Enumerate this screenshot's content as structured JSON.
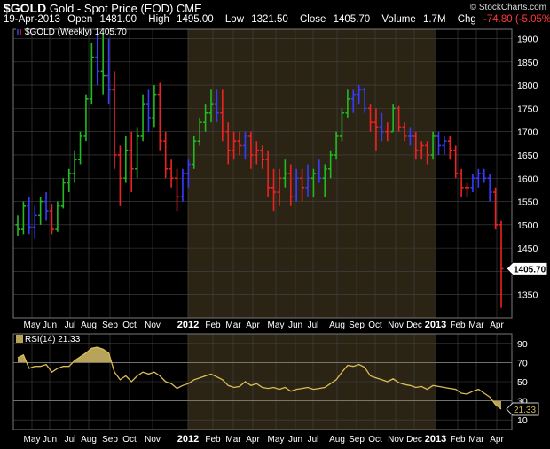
{
  "header": {
    "symbol": "$GOLD",
    "name": "Gold - Spot Price (EOD)",
    "exchange": "CME",
    "date": "19-Apr-2013",
    "open_label": "Open",
    "open": "1481.00",
    "high_label": "High",
    "high": "1495.00",
    "low_label": "Low",
    "low": "1321.50",
    "close_label": "Close",
    "close": "1405.70",
    "volume_label": "Volume",
    "volume": "1.7M",
    "chg_label": "Chg",
    "chg": "-74.80 (-5.05%)",
    "chg_arrow": "▼",
    "copyright": "© StockCharts.com"
  },
  "colors": {
    "up": "#22bb22",
    "down": "#ee2222",
    "neutral": "#3a3aff",
    "shade": "#2b2414",
    "rsi_line": "#d8bc55",
    "rsi_fill": "#b8a35a",
    "grid": "#444444"
  },
  "chart_data": [
    {
      "type": "bar",
      "legend": "$GOLD (Weekly) 1405.70",
      "last_value_label": "1405.70",
      "ylim": [
        1300,
        1920
      ],
      "y_ticks": [
        1350,
        1400,
        1450,
        1500,
        1550,
        1600,
        1650,
        1700,
        1750,
        1800,
        1850,
        1900
      ],
      "x_labels": [
        "May",
        "Jun",
        "Jul",
        "Aug",
        "Sep",
        "Oct",
        "Nov",
        "2012",
        "Feb",
        "Mar",
        "Apr",
        "May",
        "Jun",
        "Jul",
        "Aug",
        "Sep",
        "Oct",
        "Nov",
        "Dec",
        "2013",
        "Feb",
        "Mar",
        "Apr"
      ],
      "x_labels_bold": [
        "2012",
        "2013"
      ],
      "shaded_year": "2012",
      "ohlc": [
        [
          1500,
          1520,
          1475,
          1490,
          "up"
        ],
        [
          1490,
          1550,
          1480,
          1540,
          "up"
        ],
        [
          1540,
          1560,
          1480,
          1495,
          "neutral"
        ],
        [
          1495,
          1540,
          1470,
          1520,
          "neutral"
        ],
        [
          1520,
          1560,
          1500,
          1550,
          "up"
        ],
        [
          1550,
          1570,
          1510,
          1530,
          "neutral"
        ],
        [
          1530,
          1545,
          1480,
          1490,
          "down"
        ],
        [
          1490,
          1550,
          1485,
          1540,
          "up"
        ],
        [
          1540,
          1600,
          1535,
          1590,
          "up"
        ],
        [
          1590,
          1620,
          1570,
          1610,
          "up"
        ],
        [
          1610,
          1660,
          1590,
          1640,
          "up"
        ],
        [
          1640,
          1700,
          1630,
          1690,
          "up"
        ],
        [
          1690,
          1780,
          1680,
          1770,
          "up"
        ],
        [
          1770,
          1890,
          1760,
          1860,
          "up"
        ],
        [
          1860,
          1920,
          1800,
          1830,
          "neutral"
        ],
        [
          1830,
          1910,
          1780,
          1820,
          "up"
        ],
        [
          1820,
          1900,
          1760,
          1790,
          "neutral"
        ],
        [
          1790,
          1830,
          1620,
          1650,
          "down"
        ],
        [
          1650,
          1670,
          1540,
          1600,
          "down"
        ],
        [
          1600,
          1690,
          1590,
          1660,
          "up"
        ],
        [
          1660,
          1700,
          1570,
          1620,
          "down"
        ],
        [
          1620,
          1710,
          1600,
          1690,
          "up"
        ],
        [
          1690,
          1780,
          1680,
          1760,
          "up"
        ],
        [
          1760,
          1790,
          1700,
          1730,
          "neutral"
        ],
        [
          1730,
          1800,
          1710,
          1780,
          "up"
        ],
        [
          1780,
          1805,
          1660,
          1680,
          "down"
        ],
        [
          1680,
          1700,
          1600,
          1620,
          "down"
        ],
        [
          1620,
          1640,
          1580,
          1600,
          "down"
        ],
        [
          1600,
          1620,
          1530,
          1560,
          "down"
        ],
        [
          1560,
          1620,
          1550,
          1610,
          "neutral"
        ],
        [
          1610,
          1640,
          1580,
          1630,
          "neutral"
        ],
        [
          1630,
          1690,
          1620,
          1680,
          "up"
        ],
        [
          1680,
          1730,
          1670,
          1720,
          "up"
        ],
        [
          1720,
          1760,
          1700,
          1740,
          "up"
        ],
        [
          1740,
          1790,
          1720,
          1760,
          "up"
        ],
        [
          1760,
          1790,
          1720,
          1740,
          "neutral"
        ],
        [
          1740,
          1790,
          1680,
          1700,
          "down"
        ],
        [
          1700,
          1720,
          1630,
          1660,
          "down"
        ],
        [
          1660,
          1700,
          1640,
          1680,
          "down"
        ],
        [
          1680,
          1700,
          1650,
          1670,
          "down"
        ],
        [
          1670,
          1700,
          1640,
          1690,
          "neutral"
        ],
        [
          1690,
          1700,
          1620,
          1650,
          "down"
        ],
        [
          1650,
          1680,
          1630,
          1660,
          "down"
        ],
        [
          1660,
          1670,
          1620,
          1640,
          "down"
        ],
        [
          1640,
          1660,
          1560,
          1580,
          "down"
        ],
        [
          1580,
          1620,
          1530,
          1570,
          "down"
        ],
        [
          1570,
          1620,
          1540,
          1600,
          "down"
        ],
        [
          1600,
          1640,
          1580,
          1610,
          "up"
        ],
        [
          1610,
          1630,
          1540,
          1560,
          "down"
        ],
        [
          1560,
          1620,
          1550,
          1600,
          "neutral"
        ],
        [
          1600,
          1620,
          1550,
          1580,
          "down"
        ],
        [
          1580,
          1630,
          1560,
          1600,
          "neutral"
        ],
        [
          1600,
          1620,
          1560,
          1610,
          "up"
        ],
        [
          1610,
          1640,
          1590,
          1600,
          "neutral"
        ],
        [
          1600,
          1630,
          1560,
          1620,
          "up"
        ],
        [
          1620,
          1660,
          1600,
          1650,
          "up"
        ],
        [
          1650,
          1700,
          1640,
          1690,
          "up"
        ],
        [
          1690,
          1750,
          1680,
          1740,
          "up"
        ],
        [
          1740,
          1790,
          1730,
          1770,
          "up"
        ],
        [
          1770,
          1790,
          1740,
          1780,
          "neutral"
        ],
        [
          1780,
          1800,
          1760,
          1790,
          "neutral"
        ],
        [
          1790,
          1795,
          1740,
          1750,
          "neutral"
        ],
        [
          1750,
          1760,
          1700,
          1720,
          "down"
        ],
        [
          1720,
          1750,
          1660,
          1710,
          "down"
        ],
        [
          1710,
          1740,
          1680,
          1700,
          "neutral"
        ],
        [
          1700,
          1720,
          1680,
          1700,
          "down"
        ],
        [
          1700,
          1760,
          1700,
          1750,
          "up"
        ],
        [
          1750,
          1755,
          1700,
          1710,
          "down"
        ],
        [
          1710,
          1720,
          1680,
          1690,
          "down"
        ],
        [
          1690,
          1710,
          1670,
          1690,
          "neutral"
        ],
        [
          1690,
          1700,
          1640,
          1660,
          "down"
        ],
        [
          1660,
          1680,
          1640,
          1670,
          "down"
        ],
        [
          1670,
          1680,
          1630,
          1650,
          "down"
        ],
        [
          1650,
          1700,
          1640,
          1690,
          "up"
        ],
        [
          1690,
          1700,
          1650,
          1670,
          "neutral"
        ],
        [
          1670,
          1690,
          1650,
          1680,
          "neutral"
        ],
        [
          1680,
          1690,
          1640,
          1660,
          "down"
        ],
        [
          1660,
          1670,
          1600,
          1610,
          "down"
        ],
        [
          1610,
          1620,
          1560,
          1580,
          "down"
        ],
        [
          1580,
          1590,
          1560,
          1580,
          "down"
        ],
        [
          1580,
          1610,
          1570,
          1600,
          "neutral"
        ],
        [
          1600,
          1620,
          1580,
          1610,
          "neutral"
        ],
        [
          1610,
          1620,
          1590,
          1600,
          "neutral"
        ],
        [
          1600,
          1610,
          1550,
          1570,
          "neutral"
        ],
        [
          1570,
          1580,
          1490,
          1500,
          "down"
        ],
        [
          1500,
          1510,
          1321.5,
          1405.7,
          "down"
        ]
      ]
    },
    {
      "type": "line",
      "legend": "RSI(14) 21.33",
      "last_value_label": "21.33",
      "ylim": [
        0,
        100
      ],
      "y_ticks": [
        10,
        30,
        50,
        70,
        90
      ],
      "bands": [
        30,
        70
      ],
      "x_labels": [
        "May",
        "Jun",
        "Jul",
        "Aug",
        "Sep",
        "Oct",
        "Nov",
        "2012",
        "Feb",
        "Mar",
        "Apr",
        "May",
        "Jun",
        "Jul",
        "Aug",
        "Sep",
        "Oct",
        "Nov",
        "Dec",
        "2013",
        "Feb",
        "Mar",
        "Apr"
      ],
      "values": [
        75,
        78,
        64,
        66,
        66,
        68,
        60,
        64,
        66,
        66,
        72,
        76,
        80,
        85,
        86,
        84,
        80,
        60,
        52,
        56,
        50,
        56,
        60,
        58,
        60,
        56,
        50,
        48,
        43,
        46,
        48,
        52,
        54,
        56,
        58,
        55,
        52,
        46,
        44,
        45,
        50,
        46,
        48,
        44,
        43,
        44,
        42,
        44,
        40,
        42,
        43,
        44,
        42,
        43,
        44,
        48,
        52,
        60,
        67,
        66,
        68,
        65,
        56,
        54,
        52,
        50,
        53,
        49,
        47,
        46,
        44,
        45,
        42,
        46,
        45,
        44,
        43,
        42,
        38,
        37,
        40,
        42,
        38,
        34,
        26,
        21.33
      ]
    }
  ]
}
